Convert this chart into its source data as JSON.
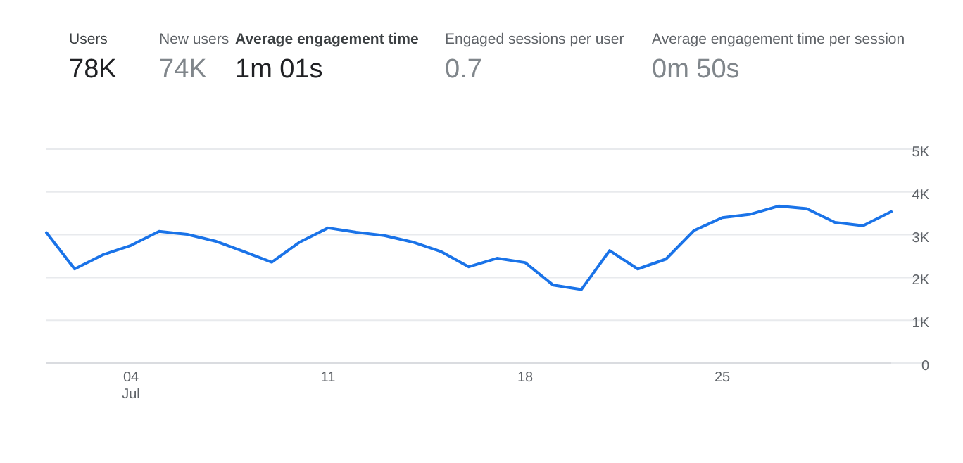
{
  "chart_data": {
    "type": "line",
    "annotations": [
      "Users",
      "78K",
      "New users",
      "74K",
      "Average engagement time",
      "1m 01s",
      "Engaged sessions per user",
      "0.7",
      "Average engagement time per session",
      "0m 50s"
    ],
    "x": [
      "--07-01",
      "--07-02",
      "--07-03",
      "--07-04",
      "--07-05",
      "--07-06",
      "--07-07",
      "--07-08",
      "--07-09",
      "--07-10",
      "--07-11",
      "--07-12",
      "--07-13",
      "--07-14",
      "--07-15",
      "--07-16",
      "--07-17",
      "--07-18",
      "--07-19",
      "--07-20",
      "--07-21",
      "--07-22",
      "--07-23",
      "--07-24",
      "--07-25",
      "--07-26",
      "--07-27",
      "--07-28",
      "--07-29",
      "--07-30",
      "--07-31"
    ],
    "series": [
      {
        "color": "#1a73e8",
        "values": [
          3050,
          2200,
          2530,
          2750,
          3080,
          3010,
          2850,
          2610,
          2360,
          2830,
          3160,
          3060,
          2980,
          2830,
          2610,
          2250,
          2450,
          2350,
          1820,
          1720,
          2630,
          2200,
          2430,
          3100,
          3400,
          3480,
          3670,
          3610,
          3290,
          3210,
          3540
        ]
      }
    ],
    "xlim": [
      "--07-01",
      "--07-31"
    ],
    "xticks": [
      {
        "value": "--07-04",
        "label": "04\nJul"
      },
      {
        "value": "--07-11",
        "label": "11"
      },
      {
        "value": "--07-18",
        "label": "18"
      },
      {
        "value": "--07-25",
        "label": "25"
      }
    ],
    "ylim": [
      0,
      5000
    ],
    "yticks": [
      {
        "value": 0,
        "label": "0"
      },
      {
        "value": 1000,
        "label": "1K"
      },
      {
        "value": 2000,
        "label": "2K"
      },
      {
        "value": 3000,
        "label": "3K"
      },
      {
        "value": 4000,
        "label": "4K"
      },
      {
        "value": 5000,
        "label": "5K"
      }
    ],
    "grid": "y",
    "marker": "none",
    "line_style": "solid"
  }
}
